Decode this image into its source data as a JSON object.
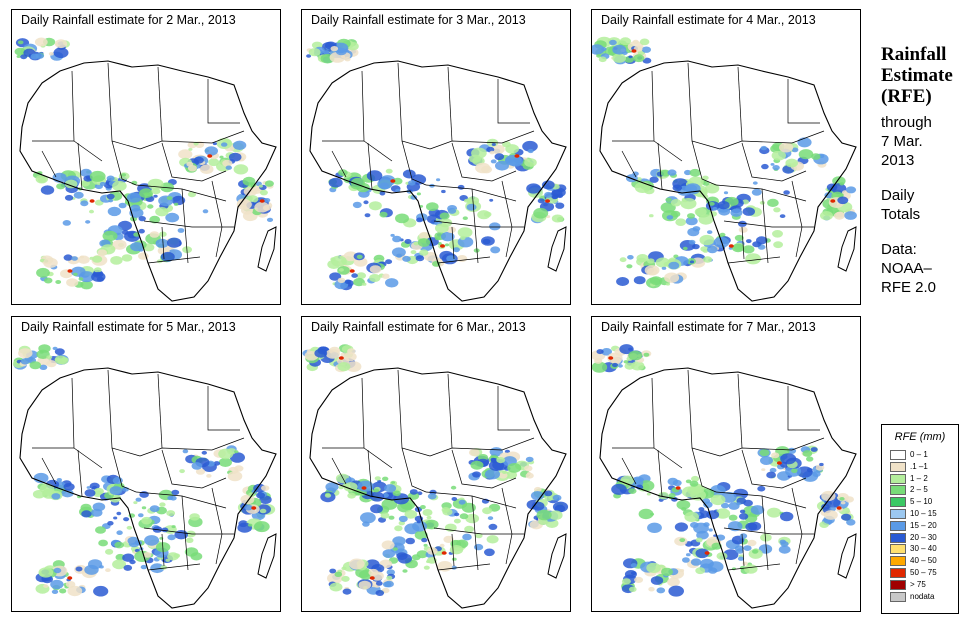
{
  "panels": [
    {
      "title": "Daily Rainfall estimate for  2 Mar., 2013",
      "day": 2
    },
    {
      "title": "Daily Rainfall estimate for  3 Mar., 2013",
      "day": 3
    },
    {
      "title": "Daily Rainfall estimate for  4 Mar., 2013",
      "day": 4
    },
    {
      "title": "Daily Rainfall estimate for  5 Mar., 2013",
      "day": 5
    },
    {
      "title": "Daily Rainfall estimate for  6 Mar., 2013",
      "day": 6
    },
    {
      "title": "Daily Rainfall estimate for  7 Mar., 2013",
      "day": 7
    }
  ],
  "sidebar": {
    "title_line1": "Rainfall",
    "title_line2": "Estimate",
    "title_line3": "(RFE)",
    "through_label": "through",
    "through_date_line1": "7 Mar.",
    "through_date_line2": "2013",
    "period_line1": "Daily",
    "period_line2": "Totals",
    "data_label": "Data:",
    "data_source_line1": "NOAA–",
    "data_source_line2": "RFE 2.0"
  },
  "legend": {
    "title": "RFE (mm)",
    "items": [
      {
        "label": "0 – 1",
        "color": "#ffffff"
      },
      {
        "label": ".1 –1",
        "color": "#f0e2c8"
      },
      {
        "label": "1 – 2",
        "color": "#b4ee9c"
      },
      {
        "label": "2 – 5",
        "color": "#78dc78"
      },
      {
        "label": "5 – 10",
        "color": "#3cc864"
      },
      {
        "label": "10 – 15",
        "color": "#9cc8f0"
      },
      {
        "label": "15 – 20",
        "color": "#5a9ae6"
      },
      {
        "label": "20 – 30",
        "color": "#2a5ad2"
      },
      {
        "label": "30 – 40",
        "color": "#ffe070"
      },
      {
        "label": "40 – 50",
        "color": "#ffa800"
      },
      {
        "label": "50 – 75",
        "color": "#e02800"
      },
      {
        "label": "> 75",
        "color": "#a00000"
      },
      {
        "label": "nodata",
        "color": "#c8c8c8"
      }
    ]
  },
  "colors": {
    "border": "#000000",
    "land": "#ffffff",
    "light_rain": "#b4ee9c",
    "moderate_rain": "#78dc78",
    "heavy_rain": "#5a9ae6",
    "very_heavy_rain": "#2a5ad2",
    "trace_rain": "#f0e2c8",
    "extreme_rain": "#e02800"
  }
}
